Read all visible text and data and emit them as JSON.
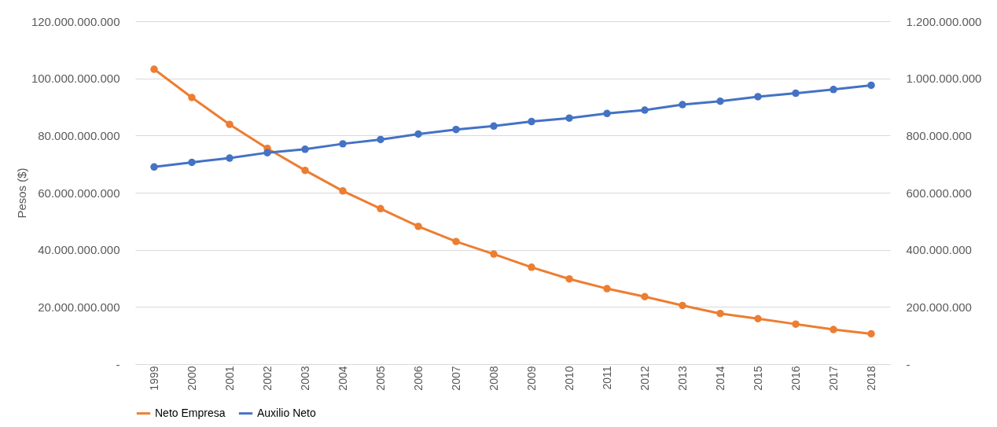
{
  "chart_data": {
    "type": "line",
    "ylabel": "Pesos ($)",
    "categories": [
      "1999",
      "2000",
      "2001",
      "2002",
      "2003",
      "2004",
      "2005",
      "2006",
      "2007",
      "2008",
      "2009",
      "2010",
      "2011",
      "2012",
      "2013",
      "2014",
      "2015",
      "2016",
      "2017",
      "2018"
    ],
    "series": [
      {
        "name": "Neto Empresa",
        "color": "#ed7d31",
        "values": [
          103200000000,
          93300000000,
          83900000000,
          75500000000,
          67800000000,
          60600000000,
          54400000000,
          48200000000,
          42900000000,
          38500000000,
          33900000000,
          29800000000,
          26400000000,
          23600000000,
          20500000000,
          17700000000,
          15900000000,
          14000000000,
          12100000000,
          10600000000
        ]
      },
      {
        "name": "Auxilio Neto",
        "color": "#4472c4",
        "axis": "y2",
        "values": [
          690000000,
          706000000,
          721000000,
          740000000,
          752000000,
          771000000,
          786000000,
          805000000,
          821000000,
          833000000,
          849000000,
          861000000,
          877000000,
          889000000,
          908000000,
          920000000,
          936000000,
          948000000,
          961000000,
          976000000
        ]
      }
    ],
    "ylim": [
      0,
      120000000000
    ],
    "yticks": [
      {
        "value": 0,
        "label": "-"
      },
      {
        "value": 20000000000,
        "label": "20.000.000.000"
      },
      {
        "value": 40000000000,
        "label": "40.000.000.000"
      },
      {
        "value": 60000000000,
        "label": "60.000.000.000"
      },
      {
        "value": 80000000000,
        "label": "80.000.000.000"
      },
      {
        "value": 100000000000,
        "label": "100.000.000.000"
      },
      {
        "value": 120000000000,
        "label": "120.000.000.000"
      }
    ],
    "y2lim": [
      0,
      1200000000
    ],
    "y2ticks": [
      {
        "value": 0,
        "label": "-"
      },
      {
        "value": 200000000,
        "label": "200.000.000"
      },
      {
        "value": 400000000,
        "label": "400.000.000"
      },
      {
        "value": 600000000,
        "label": "600.000.000"
      },
      {
        "value": 800000000,
        "label": "800.000.000"
      },
      {
        "value": 1000000000,
        "label": "1.000.000.000"
      },
      {
        "value": 1200000000,
        "label": "1.200.000.000"
      }
    ],
    "grid": "y",
    "legend": "bottom",
    "marker": "circle",
    "line_style": "solid"
  }
}
